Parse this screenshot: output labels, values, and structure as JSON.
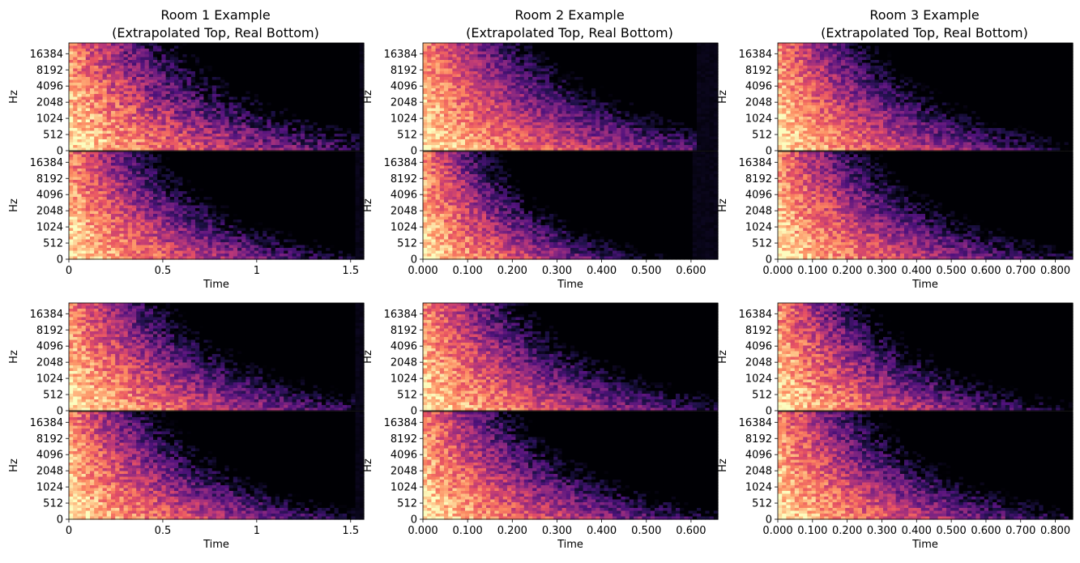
{
  "figure": {
    "colormap": "magma",
    "colormap_colors": [
      "#000004",
      "#1d1147",
      "#51127c",
      "#822681",
      "#b73779",
      "#e75263",
      "#fc8961",
      "#fec287",
      "#fcfdbf"
    ]
  },
  "chart_data": [
    {
      "type": "heatmap",
      "column": 1,
      "title_lines": [
        "Room 1 Example",
        "(Extrapolated Top, Real Bottom)"
      ],
      "xlabel": "Time",
      "ylabel": "Hz",
      "x_ticks": [
        "0",
        "0.5",
        "1",
        "1.5"
      ],
      "x_tick_values": [
        0,
        0.5,
        1,
        1.5
      ],
      "xlim": [
        0,
        1.57
      ],
      "y_ticks": [
        "0",
        "512",
        "1024",
        "2048",
        "4096",
        "8192",
        "16384"
      ],
      "y_scale": "log2-like",
      "panels": [
        {
          "row": 1,
          "part": "top",
          "label": "Extrapolated",
          "decay": 0.9,
          "end": 1.55,
          "noise": 0.34,
          "has_x_axis": false
        },
        {
          "row": 1,
          "part": "bottom",
          "label": "Real",
          "decay": 0.75,
          "end": 1.53,
          "noise": 0.3,
          "has_x_axis": true
        },
        {
          "row": 2,
          "part": "top",
          "label": "Extrapolated",
          "decay": 0.85,
          "end": 1.53,
          "noise": 0.3,
          "has_x_axis": false
        },
        {
          "row": 2,
          "part": "bottom",
          "label": "Real",
          "decay": 0.78,
          "end": 1.52,
          "noise": 0.3,
          "has_x_axis": true
        }
      ]
    },
    {
      "type": "heatmap",
      "column": 2,
      "title_lines": [
        "Room 2 Example",
        "(Extrapolated Top, Real Bottom)"
      ],
      "xlabel": "Time",
      "ylabel": "Hz",
      "x_ticks": [
        "0.000",
        "0.100",
        "0.200",
        "0.300",
        "0.400",
        "0.500",
        "0.600"
      ],
      "x_tick_values": [
        0,
        0.1,
        0.2,
        0.3,
        0.4,
        0.5,
        0.6
      ],
      "xlim": [
        0,
        0.66
      ],
      "y_ticks": [
        "0",
        "512",
        "1024",
        "2048",
        "4096",
        "8192",
        "16384"
      ],
      "y_scale": "log2-like",
      "panels": [
        {
          "row": 1,
          "part": "top",
          "label": "Extrapolated",
          "decay": 0.95,
          "end": 0.61,
          "noise": 0.28,
          "has_x_axis": false
        },
        {
          "row": 1,
          "part": "bottom",
          "label": "Real",
          "decay": 0.6,
          "end": 0.6,
          "noise": 0.3,
          "has_x_axis": true
        },
        {
          "row": 2,
          "part": "top",
          "label": "Extrapolated",
          "decay": 0.85,
          "end": 0.66,
          "noise": 0.3,
          "has_x_axis": false
        },
        {
          "row": 2,
          "part": "bottom",
          "label": "Real",
          "decay": 0.8,
          "end": 0.66,
          "noise": 0.3,
          "has_x_axis": true
        }
      ]
    },
    {
      "type": "heatmap",
      "column": 3,
      "title_lines": [
        "Room 3 Example",
        "(Extrapolated Top, Real Bottom)"
      ],
      "xlabel": "Time",
      "ylabel": "Hz",
      "x_ticks": [
        "0.000",
        "0.100",
        "0.200",
        "0.300",
        "0.400",
        "0.500",
        "0.600",
        "0.700",
        "0.800"
      ],
      "x_tick_values": [
        0,
        0.1,
        0.2,
        0.3,
        0.4,
        0.5,
        0.6,
        0.7,
        0.8
      ],
      "xlim": [
        0,
        0.85
      ],
      "y_ticks": [
        "0",
        "512",
        "1024",
        "2048",
        "4096",
        "8192",
        "16384"
      ],
      "y_scale": "log2-like",
      "panels": [
        {
          "row": 1,
          "part": "top",
          "label": "Extrapolated",
          "decay": 0.8,
          "end": 0.85,
          "noise": 0.3,
          "has_x_axis": false
        },
        {
          "row": 1,
          "part": "bottom",
          "label": "Real",
          "decay": 0.8,
          "end": 0.85,
          "noise": 0.3,
          "has_x_axis": true
        },
        {
          "row": 2,
          "part": "top",
          "label": "Extrapolated",
          "decay": 0.75,
          "end": 0.85,
          "noise": 0.32,
          "has_x_axis": false
        },
        {
          "row": 2,
          "part": "bottom",
          "label": "Real",
          "decay": 0.8,
          "end": 0.85,
          "noise": 0.3,
          "has_x_axis": true
        }
      ]
    }
  ]
}
